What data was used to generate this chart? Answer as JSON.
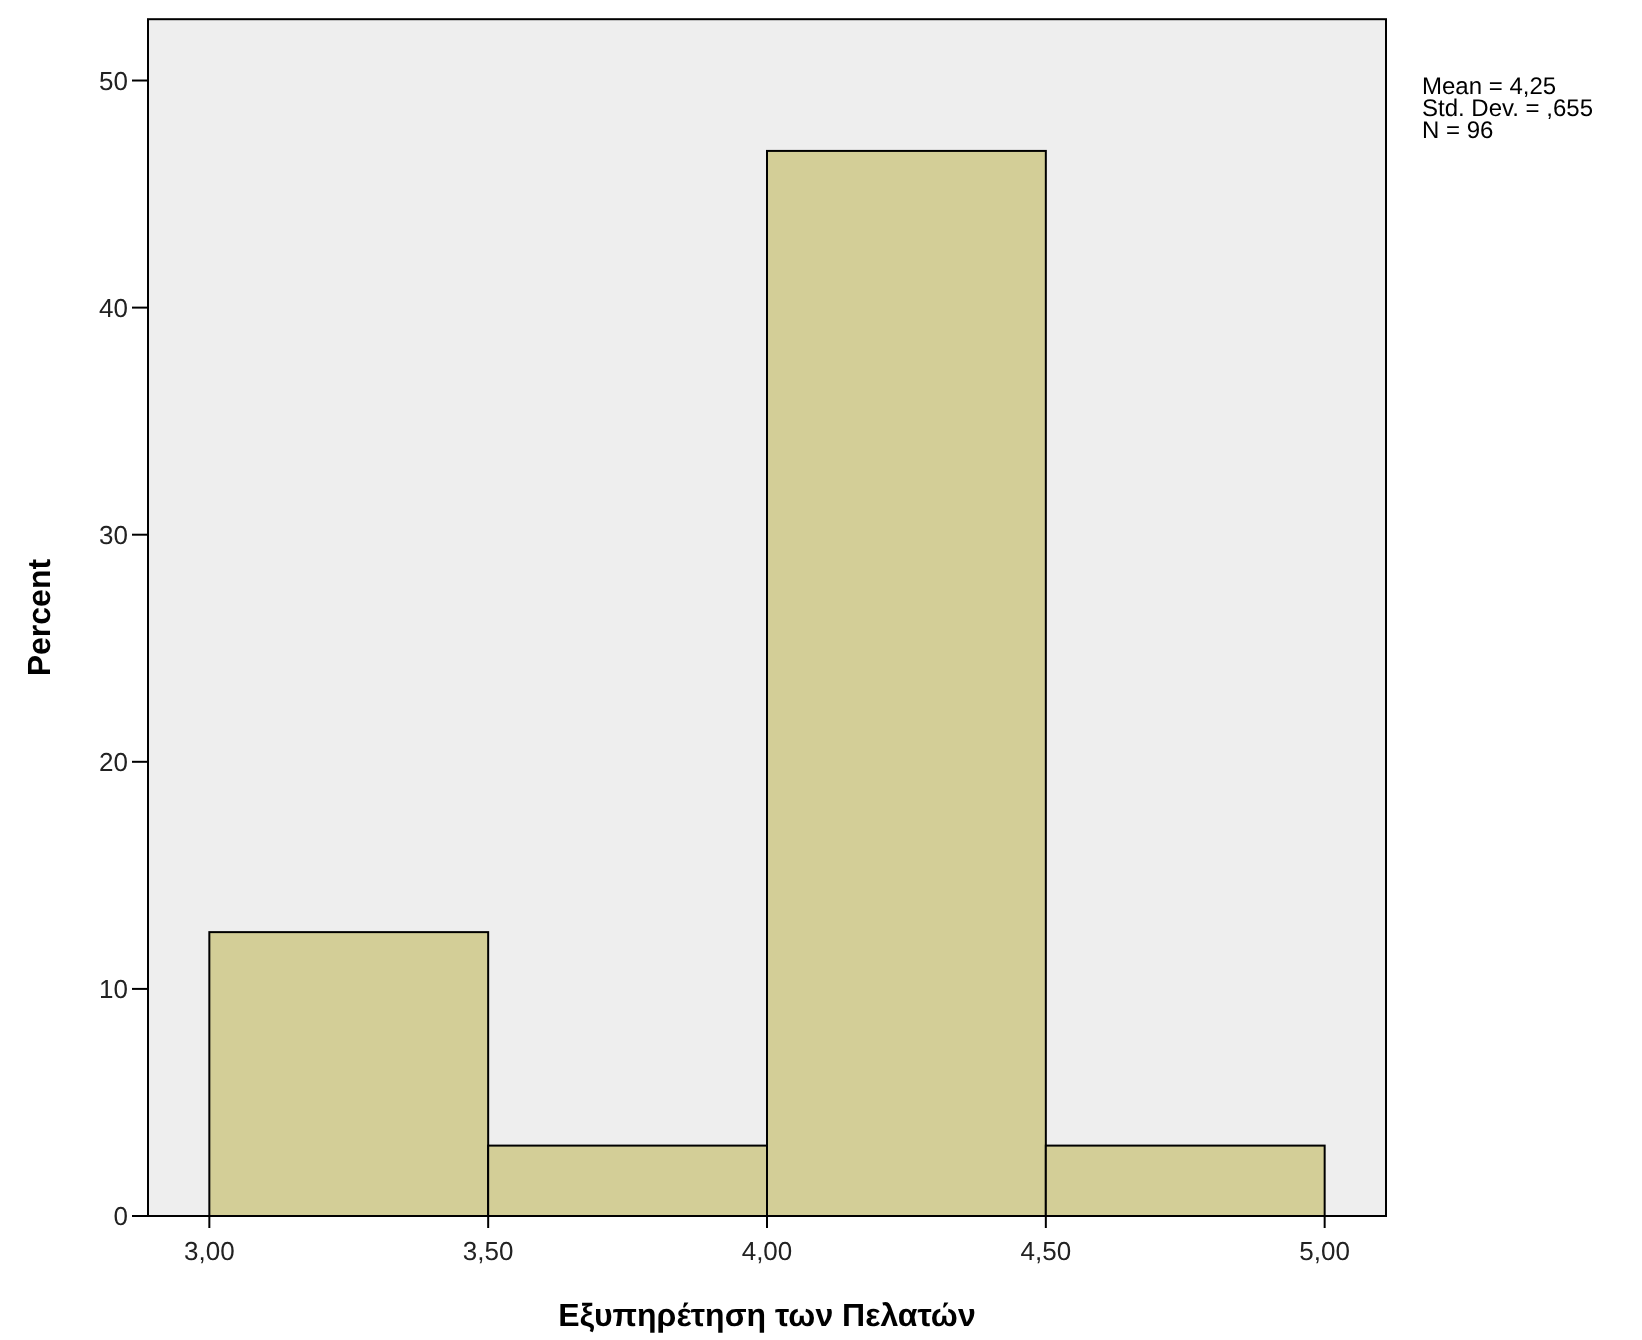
{
  "chart_data": {
    "type": "histogram",
    "xlabel": "Εξυπηρέτηση των Πελατών",
    "ylabel": "Percent",
    "bins": [
      3,
      3.5,
      4,
      4.5,
      5
    ],
    "values": [
      12.5,
      3.1,
      46.9,
      3.1
    ],
    "color": "#d3ce97",
    "xlim": [
      2.89,
      5.11
    ],
    "ylim": [
      0,
      52.7
    ],
    "xticks": [
      {
        "value": 3,
        "label": "3,00"
      },
      {
        "value": 3.5,
        "label": "3,50"
      },
      {
        "value": 4,
        "label": "4,00"
      },
      {
        "value": 4.5,
        "label": "4,50"
      },
      {
        "value": 5,
        "label": "5,00"
      }
    ],
    "yticks": [
      0,
      10,
      20,
      30,
      40,
      50
    ],
    "grid": false,
    "annotations": [
      "Mean = 4,25",
      "Std. Dev. = ,655",
      "N = 96"
    ]
  }
}
